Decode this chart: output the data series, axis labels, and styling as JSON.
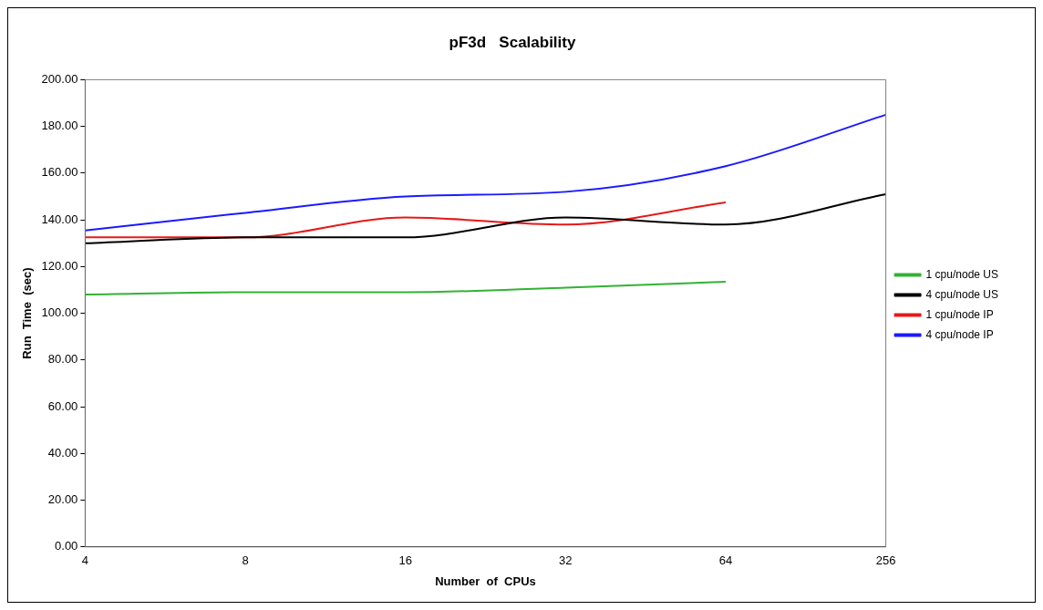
{
  "chart_data": {
    "type": "line",
    "title": "pF3d   Scalability",
    "xlabel": "Number  of  CPUs",
    "ylabel": "Run  Time  (sec)",
    "categories": [
      "4",
      "8",
      "16",
      "32",
      "64",
      "256"
    ],
    "series": [
      {
        "name": "1 cpu/node US",
        "color": "#33b233",
        "values": [
          108,
          109,
          109,
          111,
          113.5,
          null
        ]
      },
      {
        "name": "4 cpu/node US",
        "color": "#000000",
        "values": [
          130,
          132.5,
          132.5,
          141,
          138,
          151
        ]
      },
      {
        "name": "1 cpu/node IP",
        "color": "#e61919",
        "values": [
          132.5,
          132.5,
          141,
          138,
          147.5,
          null
        ]
      },
      {
        "name": "4 cpu/node IP",
        "color": "#1a1aff",
        "values": [
          135.5,
          143,
          150,
          152,
          163,
          185
        ]
      }
    ],
    "ylim": [
      0,
      200
    ],
    "yticks": [
      {
        "value": 0,
        "label": "0.00"
      },
      {
        "value": 20,
        "label": "20.00"
      },
      {
        "value": 40,
        "label": "40.00"
      },
      {
        "value": 60,
        "label": "60.00"
      },
      {
        "value": 80,
        "label": "80.00"
      },
      {
        "value": 100,
        "label": "100.00"
      },
      {
        "value": 120,
        "label": "120.00"
      },
      {
        "value": 140,
        "label": "140.00"
      },
      {
        "value": 160,
        "label": "160.00"
      },
      {
        "value": 180,
        "label": "180.00"
      },
      {
        "value": 200,
        "label": "200.00"
      }
    ],
    "grid": false,
    "legend": "right",
    "marker": "none",
    "line_style": "solid"
  }
}
